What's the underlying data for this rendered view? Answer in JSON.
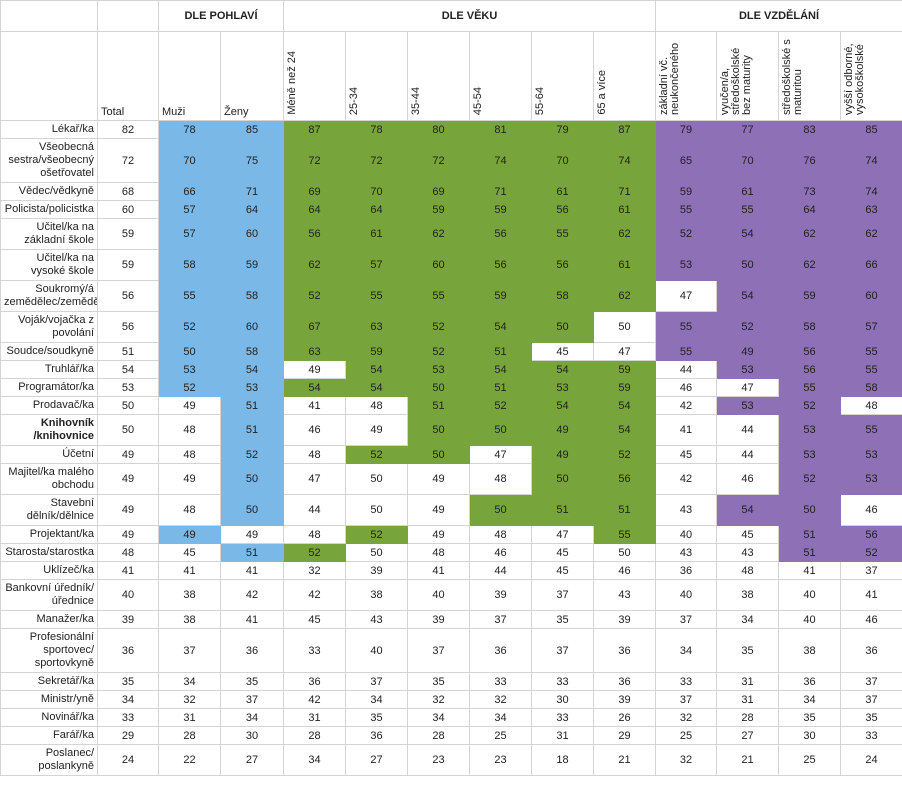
{
  "table": {
    "total_header": "Total",
    "groups": [
      {
        "title": "DLE POHLAVÍ",
        "color": "#7ab8e8",
        "rotated": false,
        "columns": [
          "Muži",
          "Ženy"
        ]
      },
      {
        "title": "DLE VĚKU",
        "color": "#77a53b",
        "rotated": true,
        "columns": [
          "Méně než 24",
          "25-34",
          "35-44",
          "45-54",
          "55-64",
          "65 a více"
        ]
      },
      {
        "title": "DLE VZDĚLÁNÍ",
        "color": "#8d70b6",
        "rotated": true,
        "columns": [
          "základní vč. neukončeného",
          "vyučen/a, středoškolské bez maturity",
          "středoškolské s maturitou",
          "vyšší odborné, vysokoškolské"
        ]
      }
    ],
    "rows": [
      {
        "label": "Lékař/ka",
        "total": 82,
        "values": [
          78,
          85,
          87,
          78,
          80,
          81,
          79,
          87,
          79,
          77,
          83,
          85
        ],
        "highlight": [
          true,
          true,
          true,
          true,
          true,
          true,
          true,
          true,
          true,
          true,
          true,
          true
        ]
      },
      {
        "label": "Všeobecná sestra/všeobecný ošetřovatel",
        "total": 72,
        "values": [
          70,
          75,
          72,
          72,
          72,
          74,
          70,
          74,
          65,
          70,
          76,
          74
        ],
        "highlight": [
          true,
          true,
          true,
          true,
          true,
          true,
          true,
          true,
          true,
          true,
          true,
          true
        ]
      },
      {
        "label": "Vědec/vědkyně",
        "total": 68,
        "values": [
          66,
          71,
          69,
          70,
          69,
          71,
          61,
          71,
          59,
          61,
          73,
          74
        ],
        "highlight": [
          true,
          true,
          true,
          true,
          true,
          true,
          true,
          true,
          true,
          true,
          true,
          true
        ]
      },
      {
        "label": "Policista/policistka",
        "total": 60,
        "values": [
          57,
          64,
          64,
          64,
          59,
          59,
          56,
          61,
          55,
          55,
          64,
          63
        ],
        "highlight": [
          true,
          true,
          true,
          true,
          true,
          true,
          true,
          true,
          true,
          true,
          true,
          true
        ]
      },
      {
        "label": "Učitel/ka na základní škole",
        "total": 59,
        "values": [
          57,
          60,
          56,
          61,
          62,
          56,
          55,
          62,
          52,
          54,
          62,
          62
        ],
        "highlight": [
          true,
          true,
          true,
          true,
          true,
          true,
          true,
          true,
          true,
          true,
          true,
          true
        ]
      },
      {
        "label": "Učitel/ka na vysoké škole",
        "total": 59,
        "values": [
          58,
          59,
          62,
          57,
          60,
          56,
          56,
          61,
          53,
          50,
          62,
          66
        ],
        "highlight": [
          true,
          true,
          true,
          true,
          true,
          true,
          true,
          true,
          true,
          true,
          true,
          true
        ]
      },
      {
        "label": "Soukromý/á zemědělec/zemědělkyně",
        "total": 56,
        "values": [
          55,
          58,
          52,
          55,
          55,
          59,
          58,
          62,
          47,
          54,
          59,
          60
        ],
        "highlight": [
          true,
          true,
          true,
          true,
          true,
          true,
          true,
          true,
          false,
          true,
          true,
          true
        ]
      },
      {
        "label": "Voják/vojačka z povolání",
        "total": 56,
        "values": [
          52,
          60,
          67,
          63,
          52,
          54,
          50,
          50,
          55,
          52,
          58,
          57
        ],
        "highlight": [
          true,
          true,
          true,
          true,
          true,
          true,
          true,
          false,
          true,
          true,
          true,
          true
        ]
      },
      {
        "label": "Soudce/soudkyně",
        "total": 51,
        "values": [
          50,
          58,
          63,
          59,
          52,
          51,
          45,
          47,
          55,
          49,
          56,
          55
        ],
        "highlight": [
          true,
          true,
          true,
          true,
          true,
          true,
          false,
          false,
          true,
          true,
          true,
          true
        ]
      },
      {
        "label": "Truhlář/ka",
        "total": 54,
        "values": [
          53,
          54,
          49,
          54,
          53,
          54,
          54,
          59,
          44,
          53,
          56,
          55
        ],
        "highlight": [
          true,
          true,
          false,
          true,
          true,
          true,
          true,
          true,
          false,
          true,
          true,
          true
        ]
      },
      {
        "label": "Programátor/ka",
        "total": 53,
        "values": [
          52,
          53,
          54,
          54,
          50,
          51,
          53,
          59,
          46,
          47,
          55,
          58
        ],
        "highlight": [
          true,
          true,
          true,
          true,
          true,
          true,
          true,
          true,
          false,
          false,
          true,
          true
        ]
      },
      {
        "label": "Prodavač/ka",
        "total": 50,
        "values": [
          49,
          51,
          41,
          48,
          51,
          52,
          54,
          54,
          42,
          53,
          52,
          48
        ],
        "highlight": [
          false,
          true,
          false,
          false,
          true,
          true,
          true,
          true,
          false,
          true,
          true,
          false
        ]
      },
      {
        "label": "Knihovník /knihovnice",
        "bold": true,
        "total": 50,
        "values": [
          48,
          51,
          46,
          49,
          50,
          50,
          49,
          54,
          41,
          44,
          53,
          55
        ],
        "highlight": [
          false,
          true,
          false,
          false,
          true,
          true,
          true,
          true,
          false,
          false,
          true,
          true
        ]
      },
      {
        "label": "Účetní",
        "total": 49,
        "values": [
          48,
          52,
          48,
          52,
          50,
          47,
          49,
          52,
          45,
          44,
          53,
          53
        ],
        "highlight": [
          false,
          true,
          false,
          true,
          true,
          false,
          true,
          true,
          false,
          false,
          true,
          true
        ]
      },
      {
        "label": "Majitel/ka malého obchodu",
        "total": 49,
        "values": [
          49,
          50,
          47,
          50,
          49,
          48,
          50,
          56,
          42,
          46,
          52,
          53
        ],
        "highlight": [
          false,
          true,
          false,
          false,
          false,
          false,
          true,
          true,
          false,
          false,
          true,
          true
        ]
      },
      {
        "label": "Stavební dělník/dělnice",
        "total": 49,
        "values": [
          48,
          50,
          44,
          50,
          49,
          50,
          51,
          51,
          43,
          54,
          50,
          46
        ],
        "highlight": [
          false,
          true,
          false,
          false,
          false,
          true,
          true,
          true,
          false,
          true,
          true,
          false
        ]
      },
      {
        "label": "Projektant/ka",
        "total": 49,
        "values": [
          49,
          49,
          48,
          52,
          49,
          48,
          47,
          55,
          40,
          45,
          51,
          56
        ],
        "highlight": [
          true,
          false,
          false,
          true,
          false,
          false,
          false,
          true,
          false,
          false,
          true,
          true
        ]
      },
      {
        "label": "Starosta/starostka",
        "total": 48,
        "values": [
          45,
          51,
          52,
          50,
          48,
          46,
          45,
          50,
          43,
          43,
          51,
          52
        ],
        "highlight": [
          false,
          true,
          true,
          false,
          false,
          false,
          false,
          false,
          false,
          false,
          true,
          true
        ]
      },
      {
        "label": "Uklízeč/ka",
        "total": 41,
        "values": [
          41,
          41,
          32,
          39,
          41,
          44,
          45,
          46,
          36,
          48,
          41,
          37
        ],
        "highlight": [
          false,
          false,
          false,
          false,
          false,
          false,
          false,
          false,
          false,
          false,
          false,
          false
        ]
      },
      {
        "label": "Bankovní úředník/úřednice",
        "total": 40,
        "values": [
          38,
          42,
          42,
          38,
          40,
          39,
          37,
          43,
          40,
          38,
          40,
          41
        ],
        "highlight": [
          false,
          false,
          false,
          false,
          false,
          false,
          false,
          false,
          false,
          false,
          false,
          false
        ]
      },
      {
        "label": "Manažer/ka",
        "total": 39,
        "values": [
          38,
          41,
          45,
          43,
          39,
          37,
          35,
          39,
          37,
          34,
          40,
          46
        ],
        "highlight": [
          false,
          false,
          false,
          false,
          false,
          false,
          false,
          false,
          false,
          false,
          false,
          false
        ]
      },
      {
        "label": "Profesionální sportovec/ sportovkyně",
        "total": 36,
        "values": [
          37,
          36,
          33,
          40,
          37,
          36,
          37,
          36,
          34,
          35,
          38,
          36
        ],
        "highlight": [
          false,
          false,
          false,
          false,
          false,
          false,
          false,
          false,
          false,
          false,
          false,
          false
        ]
      },
      {
        "label": "Sekretář/ka",
        "total": 35,
        "values": [
          34,
          35,
          36,
          37,
          35,
          33,
          33,
          36,
          33,
          31,
          36,
          37
        ],
        "highlight": [
          false,
          false,
          false,
          false,
          false,
          false,
          false,
          false,
          false,
          false,
          false,
          false
        ]
      },
      {
        "label": "Ministr/yně",
        "total": 34,
        "values": [
          32,
          37,
          42,
          34,
          32,
          32,
          30,
          39,
          37,
          31,
          34,
          37
        ],
        "highlight": [
          false,
          false,
          false,
          false,
          false,
          false,
          false,
          false,
          false,
          false,
          false,
          false
        ]
      },
      {
        "label": "Novinář/ka",
        "total": 33,
        "values": [
          31,
          34,
          31,
          35,
          34,
          34,
          33,
          26,
          32,
          28,
          35,
          35
        ],
        "highlight": [
          false,
          false,
          false,
          false,
          false,
          false,
          false,
          false,
          false,
          false,
          false,
          false
        ]
      },
      {
        "label": "Farář/ka",
        "total": 29,
        "values": [
          28,
          30,
          28,
          36,
          28,
          25,
          31,
          29,
          25,
          27,
          30,
          33
        ],
        "highlight": [
          false,
          false,
          false,
          false,
          false,
          false,
          false,
          false,
          false,
          false,
          false,
          false
        ]
      },
      {
        "label": "Poslanec/ poslankyně",
        "total": 24,
        "values": [
          22,
          27,
          34,
          27,
          23,
          23,
          18,
          21,
          32,
          21,
          25,
          24
        ],
        "highlight": [
          false,
          false,
          false,
          false,
          false,
          false,
          false,
          false,
          false,
          false,
          false,
          false
        ]
      }
    ]
  }
}
